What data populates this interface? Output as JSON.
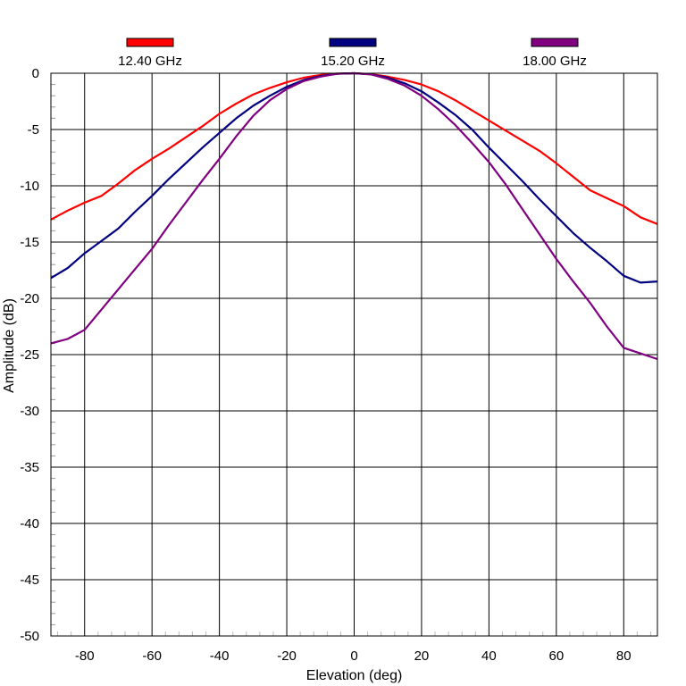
{
  "chart_data": {
    "type": "line",
    "xlabel": "Elevation (deg)",
    "ylabel": "Amplitude (dB)",
    "xlim": [
      -90,
      90
    ],
    "ylim": [
      -50,
      0
    ],
    "xticks": [
      -80,
      -60,
      -40,
      -20,
      0,
      20,
      40,
      60,
      80
    ],
    "yticks": [
      0,
      -5,
      -10,
      -15,
      -20,
      -25,
      -30,
      -35,
      -40,
      -45,
      -50
    ],
    "grid": true,
    "legend_position": "top",
    "series": [
      {
        "name": "12.40 GHz",
        "color": "#ff0000",
        "x": [
          -90,
          -85,
          -80,
          -75,
          -70,
          -65,
          -60,
          -55,
          -50,
          -45,
          -40,
          -35,
          -30,
          -25,
          -20,
          -15,
          -10,
          -5,
          0,
          5,
          10,
          15,
          20,
          25,
          30,
          35,
          40,
          45,
          50,
          55,
          60,
          65,
          70,
          75,
          80,
          85,
          90
        ],
        "y": [
          -13.0,
          -12.2,
          -11.5,
          -10.9,
          -9.8,
          -8.6,
          -7.6,
          -6.7,
          -5.7,
          -4.7,
          -3.6,
          -2.7,
          -1.9,
          -1.3,
          -0.8,
          -0.4,
          -0.15,
          -0.03,
          0,
          -0.08,
          -0.3,
          -0.6,
          -1.0,
          -1.6,
          -2.4,
          -3.3,
          -4.2,
          -5.1,
          -6.0,
          -6.9,
          -8.0,
          -9.2,
          -10.4,
          -11.1,
          -11.8,
          -12.8,
          -13.4
        ]
      },
      {
        "name": "15.20 GHz",
        "color": "#000080",
        "x": [
          -90,
          -85,
          -80,
          -75,
          -70,
          -65,
          -60,
          -55,
          -50,
          -45,
          -40,
          -35,
          -30,
          -25,
          -20,
          -15,
          -10,
          -5,
          0,
          5,
          10,
          15,
          20,
          25,
          30,
          35,
          40,
          45,
          50,
          55,
          60,
          65,
          70,
          75,
          80,
          85,
          90
        ],
        "y": [
          -18.2,
          -17.3,
          -16.0,
          -14.9,
          -13.8,
          -12.3,
          -10.9,
          -9.4,
          -8.0,
          -6.6,
          -5.3,
          -4.0,
          -2.9,
          -2.0,
          -1.2,
          -0.6,
          -0.25,
          -0.05,
          0,
          -0.1,
          -0.4,
          -0.9,
          -1.6,
          -2.6,
          -3.7,
          -5.0,
          -6.6,
          -8.1,
          -9.6,
          -11.2,
          -12.7,
          -14.2,
          -15.5,
          -16.7,
          -18.0,
          -18.6,
          -18.5
        ]
      },
      {
        "name": "18.00 GHz",
        "color": "#800080",
        "x": [
          -90,
          -85,
          -80,
          -75,
          -70,
          -65,
          -60,
          -55,
          -50,
          -45,
          -40,
          -35,
          -30,
          -25,
          -20,
          -15,
          -10,
          -5,
          0,
          5,
          10,
          15,
          20,
          25,
          30,
          35,
          40,
          45,
          50,
          55,
          60,
          65,
          70,
          75,
          80,
          85,
          90
        ],
        "y": [
          -24.0,
          -23.6,
          -22.8,
          -21.0,
          -19.2,
          -17.4,
          -15.6,
          -13.5,
          -11.5,
          -9.5,
          -7.6,
          -5.6,
          -3.8,
          -2.4,
          -1.4,
          -0.7,
          -0.3,
          -0.05,
          0,
          -0.1,
          -0.5,
          -1.1,
          -2.0,
          -3.2,
          -4.6,
          -6.2,
          -7.9,
          -9.9,
          -12.1,
          -14.3,
          -16.5,
          -18.5,
          -20.4,
          -22.5,
          -24.4,
          -24.9,
          -25.4
        ]
      }
    ]
  }
}
